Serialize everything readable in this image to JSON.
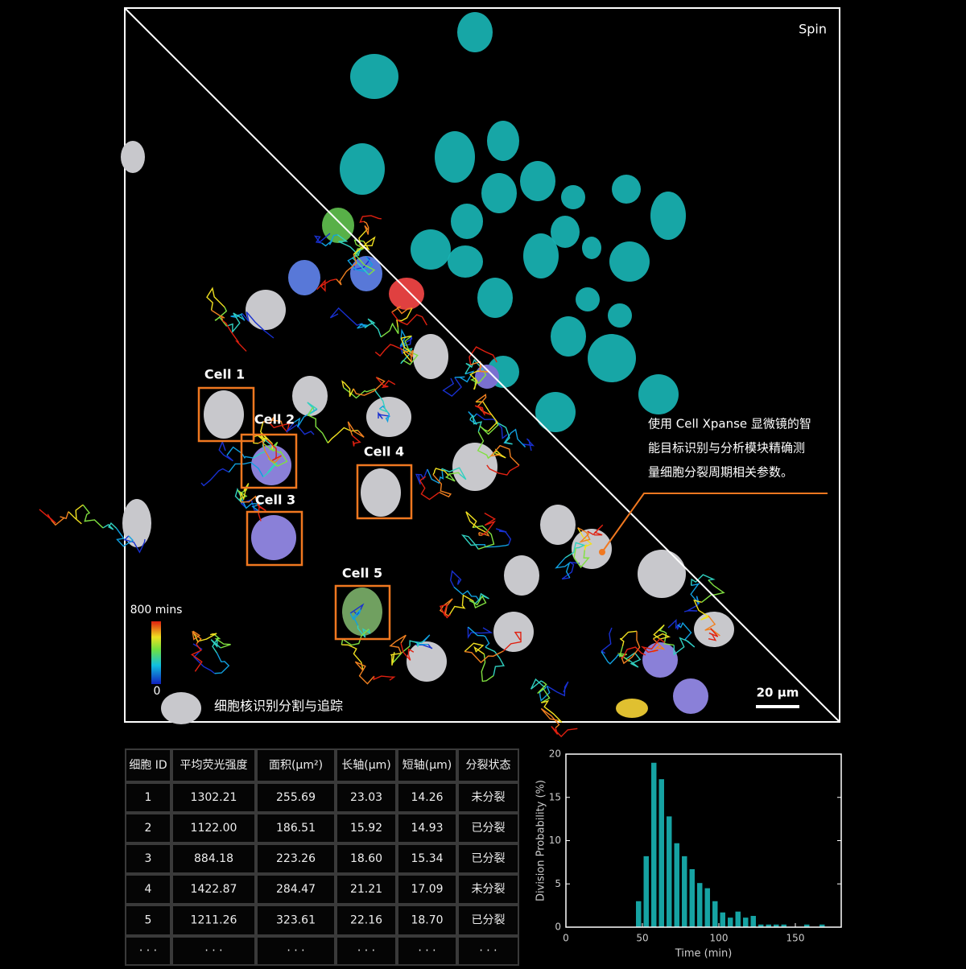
{
  "image": {
    "spin_label": "Spin",
    "caption": "细胞核识别分割与追踪",
    "annotation": [
      "使用 Cell Xpanse 显微镜的智",
      "能目标识别与分析模块精确测",
      "量细胞分裂周期相关参数。"
    ],
    "cell_labels": [
      "Cell 1",
      "Cell 2",
      "Cell 3",
      "Cell 4",
      "Cell 5"
    ],
    "colorbar": {
      "max_label": "800 mins",
      "min_label": "0"
    },
    "scale_bar": "20 μm"
  },
  "table": {
    "header": [
      "细胞 ID",
      "平均荧光强度",
      "面积(μm²)",
      "长轴(μm)",
      "短轴(μm)",
      "分裂状态"
    ],
    "rows": [
      [
        "1",
        "1302.21",
        "255.69",
        "23.03",
        "14.26",
        "未分裂"
      ],
      [
        "2",
        "1122.00",
        "186.51",
        "15.92",
        "14.93",
        "已分裂"
      ],
      [
        "3",
        "884.18",
        "223.26",
        "18.60",
        "15.34",
        "已分裂"
      ],
      [
        "4",
        "1422.87",
        "284.47",
        "21.21",
        "17.09",
        "未分裂"
      ],
      [
        "5",
        "1211.26",
        "323.61",
        "22.16",
        "18.70",
        "已分裂"
      ],
      [
        "· · ·",
        "· · ·",
        "· · ·",
        "· · ·",
        "· · ·",
        "· · ·"
      ]
    ]
  },
  "chart_data": {
    "type": "histogram",
    "xlabel": "Time (min)",
    "ylabel": "Division Probability (%)",
    "bins": [
      45,
      50,
      55,
      60,
      65,
      70,
      75,
      80,
      85,
      90,
      95,
      100,
      105,
      110,
      115,
      120,
      125,
      130,
      135,
      140,
      145,
      150,
      155,
      160,
      165,
      170
    ],
    "counts": [
      3.0,
      8.2,
      19.0,
      17.1,
      12.8,
      9.7,
      8.2,
      6.7,
      5.1,
      4.5,
      3.0,
      1.7,
      1.1,
      1.8,
      1.1,
      1.3,
      0.3,
      0.3,
      0.3,
      0.3,
      0,
      0,
      0.3,
      0,
      0.3
    ],
    "color": "#16a3a3",
    "xlim": [
      0,
      180
    ],
    "ylim": [
      0,
      20
    ],
    "xticks": [
      0,
      50,
      100,
      150
    ],
    "yticks": [
      0,
      5,
      10,
      15,
      20
    ]
  }
}
